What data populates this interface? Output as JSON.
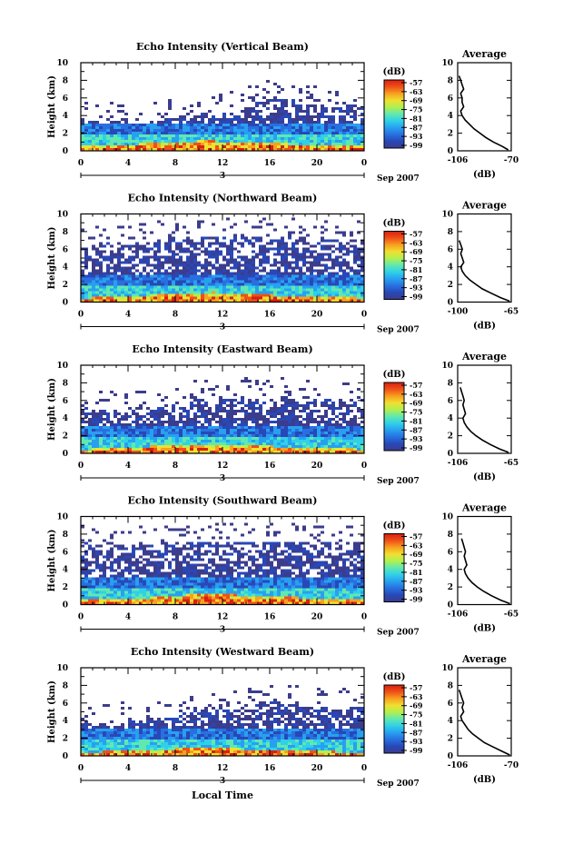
{
  "chart_data": [
    {
      "type": "heatmap",
      "title": "Echo Intensity (Vertical Beam)",
      "ylabel": "Height (km)",
      "xticks": [
        "0",
        "4",
        "8",
        "12",
        "16",
        "20",
        "0"
      ],
      "yticks": [
        "0",
        "2",
        "4",
        "6",
        "8",
        "10"
      ],
      "xlim": [
        0,
        24
      ],
      "ylim": [
        0,
        10
      ],
      "date_day": "3",
      "date_month": "Sep 2007",
      "colorbar_unit": "(dB)",
      "colorbar_ticks": [
        "-57",
        "-63",
        "-69",
        "-75",
        "-81",
        "-87",
        "-93",
        "-99"
      ],
      "echo_top_km": [
        3.6,
        3.3,
        3.2,
        3.4,
        3.0,
        3.2,
        3.5,
        3.6,
        3.8,
        4.0,
        4.2,
        4.1,
        4.3,
        4.6,
        5.0,
        5.6,
        5.8,
        5.9,
        5.7,
        5.4,
        5.2,
        4.9,
        5.0,
        5.3,
        5.1
      ],
      "strong_echo_top_km": [
        0.5,
        0.5,
        0.6,
        0.6,
        0.7,
        0.8,
        0.8,
        0.9,
        1.0,
        1.0,
        1.1,
        1.1,
        1.0,
        1.0,
        0.9,
        0.9,
        0.8,
        0.8,
        0.7,
        0.7,
        0.6,
        0.6,
        0.6,
        0.5,
        0.5
      ],
      "profile": {
        "title": "Average",
        "xlabel": "(dB)",
        "xticks": [
          "-106",
          "-70"
        ],
        "xlim": [
          -106,
          -70
        ],
        "heights_km": [
          0.1,
          0.5,
          1.0,
          1.5,
          2.0,
          2.5,
          3.0,
          3.5,
          4.0,
          4.5,
          5.0,
          5.5,
          6.0,
          6.5,
          7.0,
          7.5,
          8.0,
          8.5
        ],
        "values_db": [
          -72,
          -76,
          -82,
          -87,
          -91,
          -95,
          -98,
          -101,
          -103,
          -104,
          -102,
          -103,
          -103,
          -104,
          -102,
          -103,
          -104,
          -105
        ]
      }
    },
    {
      "type": "heatmap",
      "title": "Echo Intensity (Northward Beam)",
      "ylabel": "Height (km)",
      "xticks": [
        "0",
        "4",
        "8",
        "12",
        "16",
        "20",
        "0"
      ],
      "yticks": [
        "0",
        "2",
        "4",
        "6",
        "8",
        "10"
      ],
      "xlim": [
        0,
        24
      ],
      "ylim": [
        0,
        10
      ],
      "date_day": "3",
      "date_month": "Sep 2007",
      "colorbar_unit": "(dB)",
      "colorbar_ticks": [
        "-57",
        "-63",
        "-69",
        "-75",
        "-81",
        "-87",
        "-93",
        "-99"
      ],
      "echo_top_km": [
        6.8,
        6.5,
        6.9,
        6.3,
        6.6,
        6.8,
        6.9,
        7.2,
        7.4,
        7.5,
        7.3,
        7.5,
        7.6,
        7.4,
        7.5,
        7.3,
        7.2,
        7.3,
        7.5,
        7.2,
        7.0,
        7.1,
        6.9,
        7.0,
        7.2
      ],
      "strong_echo_top_km": [
        0.4,
        0.5,
        0.5,
        0.6,
        0.6,
        0.7,
        0.8,
        0.9,
        1.0,
        1.0,
        1.0,
        1.1,
        1.0,
        1.0,
        0.9,
        0.9,
        0.8,
        0.7,
        0.7,
        0.6,
        0.6,
        0.5,
        0.5,
        0.5,
        0.4
      ],
      "profile": {
        "title": "Average",
        "xlabel": "(dB)",
        "xticks": [
          "-100",
          "-65"
        ],
        "xlim": [
          -100,
          -65
        ],
        "heights_km": [
          0.1,
          0.5,
          1.0,
          1.5,
          2.0,
          2.5,
          3.0,
          3.5,
          4.0,
          4.5,
          5.0,
          5.5,
          6.0,
          6.5,
          7.0
        ],
        "values_db": [
          -66,
          -72,
          -78,
          -84,
          -88,
          -92,
          -95,
          -97,
          -98,
          -96,
          -97,
          -98,
          -97,
          -98,
          -99
        ]
      }
    },
    {
      "type": "heatmap",
      "title": "Echo Intensity (Eastward Beam)",
      "ylabel": "Height (km)",
      "xticks": [
        "0",
        "4",
        "8",
        "12",
        "16",
        "20",
        "0"
      ],
      "yticks": [
        "0",
        "2",
        "4",
        "6",
        "8",
        "10"
      ],
      "xlim": [
        0,
        24
      ],
      "ylim": [
        0,
        10
      ],
      "date_day": "3",
      "date_month": "Sep 2007",
      "colorbar_unit": "(dB)",
      "colorbar_ticks": [
        "-57",
        "-63",
        "-69",
        "-75",
        "-81",
        "-87",
        "-93",
        "-99"
      ],
      "echo_top_km": [
        5.5,
        4.8,
        5.0,
        4.5,
        4.8,
        5.0,
        5.2,
        5.6,
        5.8,
        6.0,
        6.1,
        6.0,
        6.2,
        6.4,
        6.3,
        6.1,
        6.2,
        6.4,
        6.3,
        6.2,
        6.0,
        6.1,
        6.2,
        6.3,
        6.0
      ],
      "strong_echo_top_km": [
        0.4,
        0.5,
        0.5,
        0.6,
        0.6,
        0.7,
        0.8,
        0.8,
        0.9,
        0.9,
        1.0,
        1.0,
        0.9,
        0.9,
        0.8,
        0.8,
        0.8,
        0.7,
        0.6,
        0.6,
        0.5,
        0.5,
        0.5,
        0.5,
        0.4
      ],
      "profile": {
        "title": "Average",
        "xlabel": "(dB)",
        "xticks": [
          "-106",
          "-65"
        ],
        "xlim": [
          -106,
          -65
        ],
        "heights_km": [
          0.1,
          0.5,
          1.0,
          1.5,
          2.0,
          2.5,
          3.0,
          3.5,
          4.0,
          4.5,
          5.0,
          5.5,
          6.0,
          6.5,
          7.0,
          7.5
        ],
        "values_db": [
          -67,
          -74,
          -81,
          -87,
          -92,
          -96,
          -99,
          -101,
          -102,
          -100,
          -101,
          -102,
          -101,
          -102,
          -103,
          -104
        ]
      }
    },
    {
      "type": "heatmap",
      "title": "Echo Intensity (Southward Beam)",
      "ylabel": "Height (km)",
      "xticks": [
        "0",
        "4",
        "8",
        "12",
        "16",
        "20",
        "0"
      ],
      "yticks": [
        "0",
        "2",
        "4",
        "6",
        "8",
        "10"
      ],
      "xlim": [
        0,
        24
      ],
      "ylim": [
        0,
        10
      ],
      "date_day": "3",
      "date_month": "Sep 2007",
      "colorbar_unit": "(dB)",
      "colorbar_ticks": [
        "-57",
        "-63",
        "-69",
        "-75",
        "-81",
        "-87",
        "-93",
        "-99"
      ],
      "echo_top_km": [
        7.5,
        6.8,
        6.5,
        6.6,
        6.7,
        6.9,
        6.8,
        7.0,
        7.2,
        7.1,
        7.0,
        7.2,
        7.1,
        7.2,
        7.0,
        7.1,
        7.2,
        7.0,
        7.1,
        7.0,
        6.9,
        7.0,
        7.1,
        6.9,
        7.0
      ],
      "strong_echo_top_km": [
        0.5,
        0.5,
        0.6,
        0.6,
        0.7,
        0.7,
        0.8,
        0.9,
        1.0,
        1.1,
        1.1,
        1.2,
        1.1,
        1.1,
        1.0,
        1.0,
        0.9,
        0.8,
        0.8,
        0.7,
        0.6,
        0.6,
        0.5,
        0.5,
        0.5
      ],
      "profile": {
        "title": "Average",
        "xlabel": "(dB)",
        "xticks": [
          "-106",
          "-65"
        ],
        "xlim": [
          -106,
          -65
        ],
        "heights_km": [
          0.1,
          0.5,
          1.0,
          1.5,
          2.0,
          2.5,
          3.0,
          3.5,
          4.0,
          4.5,
          5.0,
          5.5,
          6.0,
          6.5,
          7.0,
          7.5
        ],
        "values_db": [
          -66,
          -73,
          -80,
          -86,
          -91,
          -95,
          -98,
          -100,
          -101,
          -99,
          -100,
          -101,
          -100,
          -101,
          -102,
          -103
        ]
      }
    },
    {
      "type": "heatmap",
      "title": "Echo Intensity (Westward Beam)",
      "ylabel": "Height (km)",
      "xticks": [
        "0",
        "4",
        "8",
        "12",
        "16",
        "20",
        "0"
      ],
      "yticks": [
        "0",
        "2",
        "4",
        "6",
        "8",
        "10"
      ],
      "xlim": [
        0,
        24
      ],
      "ylim": [
        0,
        10
      ],
      "date_day": "3",
      "date_month": "Sep 2007",
      "colorbar_unit": "(dB)",
      "colorbar_ticks": [
        "-57",
        "-63",
        "-69",
        "-75",
        "-81",
        "-87",
        "-93",
        "-99"
      ],
      "echo_top_km": [
        4.0,
        3.7,
        3.8,
        3.9,
        4.0,
        4.2,
        4.3,
        4.5,
        4.8,
        5.0,
        5.2,
        5.0,
        5.3,
        5.6,
        5.8,
        6.0,
        6.1,
        6.0,
        5.8,
        5.6,
        5.4,
        5.5,
        5.6,
        5.5,
        5.4
      ],
      "strong_echo_top_km": [
        0.4,
        0.4,
        0.5,
        0.5,
        0.5,
        0.6,
        0.6,
        0.7,
        0.8,
        0.8,
        0.9,
        0.9,
        0.8,
        0.8,
        0.7,
        0.7,
        0.7,
        0.6,
        0.6,
        0.5,
        0.5,
        0.5,
        0.4,
        0.4,
        0.4
      ],
      "profile": {
        "title": "Average",
        "xlabel": "(dB)",
        "xticks": [
          "-106",
          "-70"
        ],
        "xlim": [
          -106,
          -70
        ],
        "heights_km": [
          0.1,
          0.5,
          1.0,
          1.5,
          2.0,
          2.5,
          3.0,
          3.5,
          4.0,
          4.5,
          5.0,
          5.5,
          6.0,
          6.5,
          7.0,
          7.5
        ],
        "values_db": [
          -71,
          -76,
          -82,
          -88,
          -92,
          -96,
          -99,
          -101,
          -103,
          -104,
          -102,
          -103,
          -102,
          -103,
          -104,
          -105
        ]
      }
    }
  ],
  "xlabel": "Local Time",
  "colormap": [
    "#3c3c8c",
    "#2848b8",
    "#2870e0",
    "#28a0f0",
    "#30d0e8",
    "#60e8b0",
    "#b0f050",
    "#f0e030",
    "#f8a020",
    "#f05018",
    "#d82010"
  ]
}
